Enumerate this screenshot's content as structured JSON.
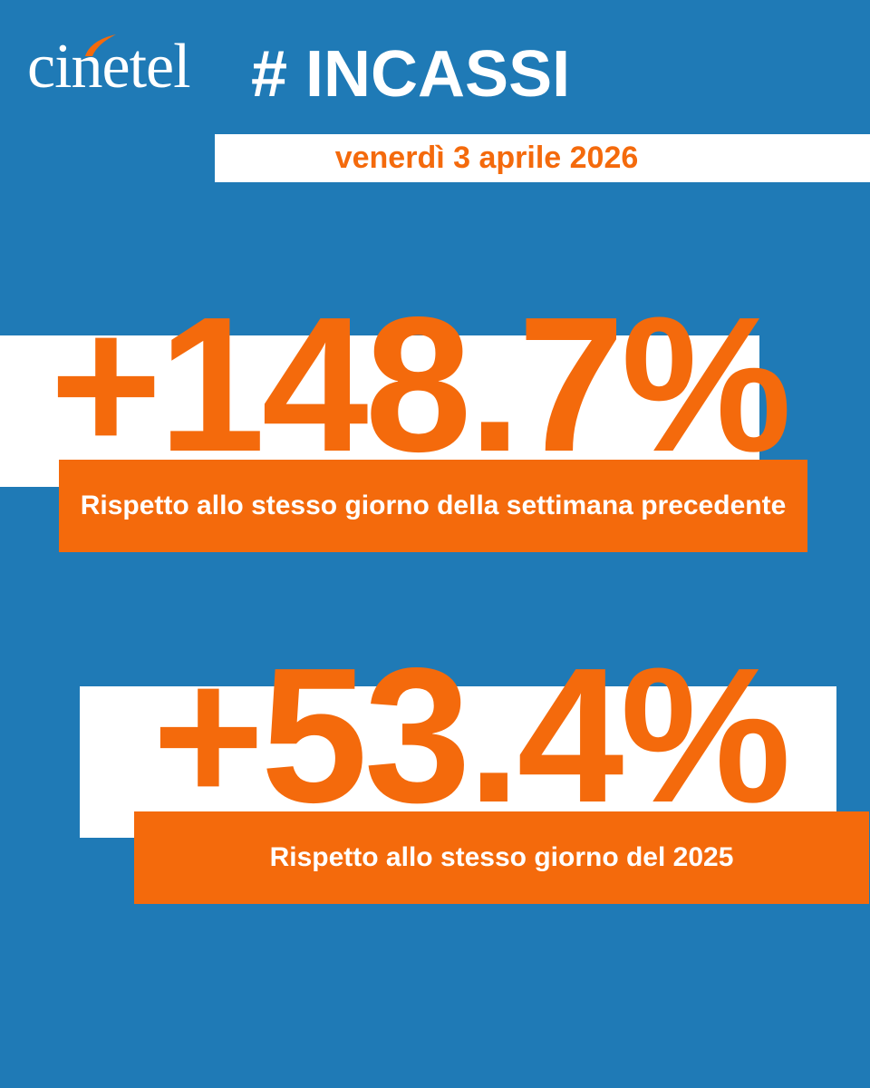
{
  "header": {
    "logo_text": "cinetel",
    "hashtag": "# INCASSI",
    "date": "venerdì 3 aprile 2026"
  },
  "stats": [
    {
      "value": "+148.7%",
      "caption": "Rispetto allo stesso giorno della settimana precedente"
    },
    {
      "value": "+53.4%",
      "caption": "Rispetto allo stesso giorno del 2025"
    }
  ],
  "colors": {
    "background": "#1f7ab6",
    "accent": "#f46a0c",
    "panel": "#ffffff"
  }
}
